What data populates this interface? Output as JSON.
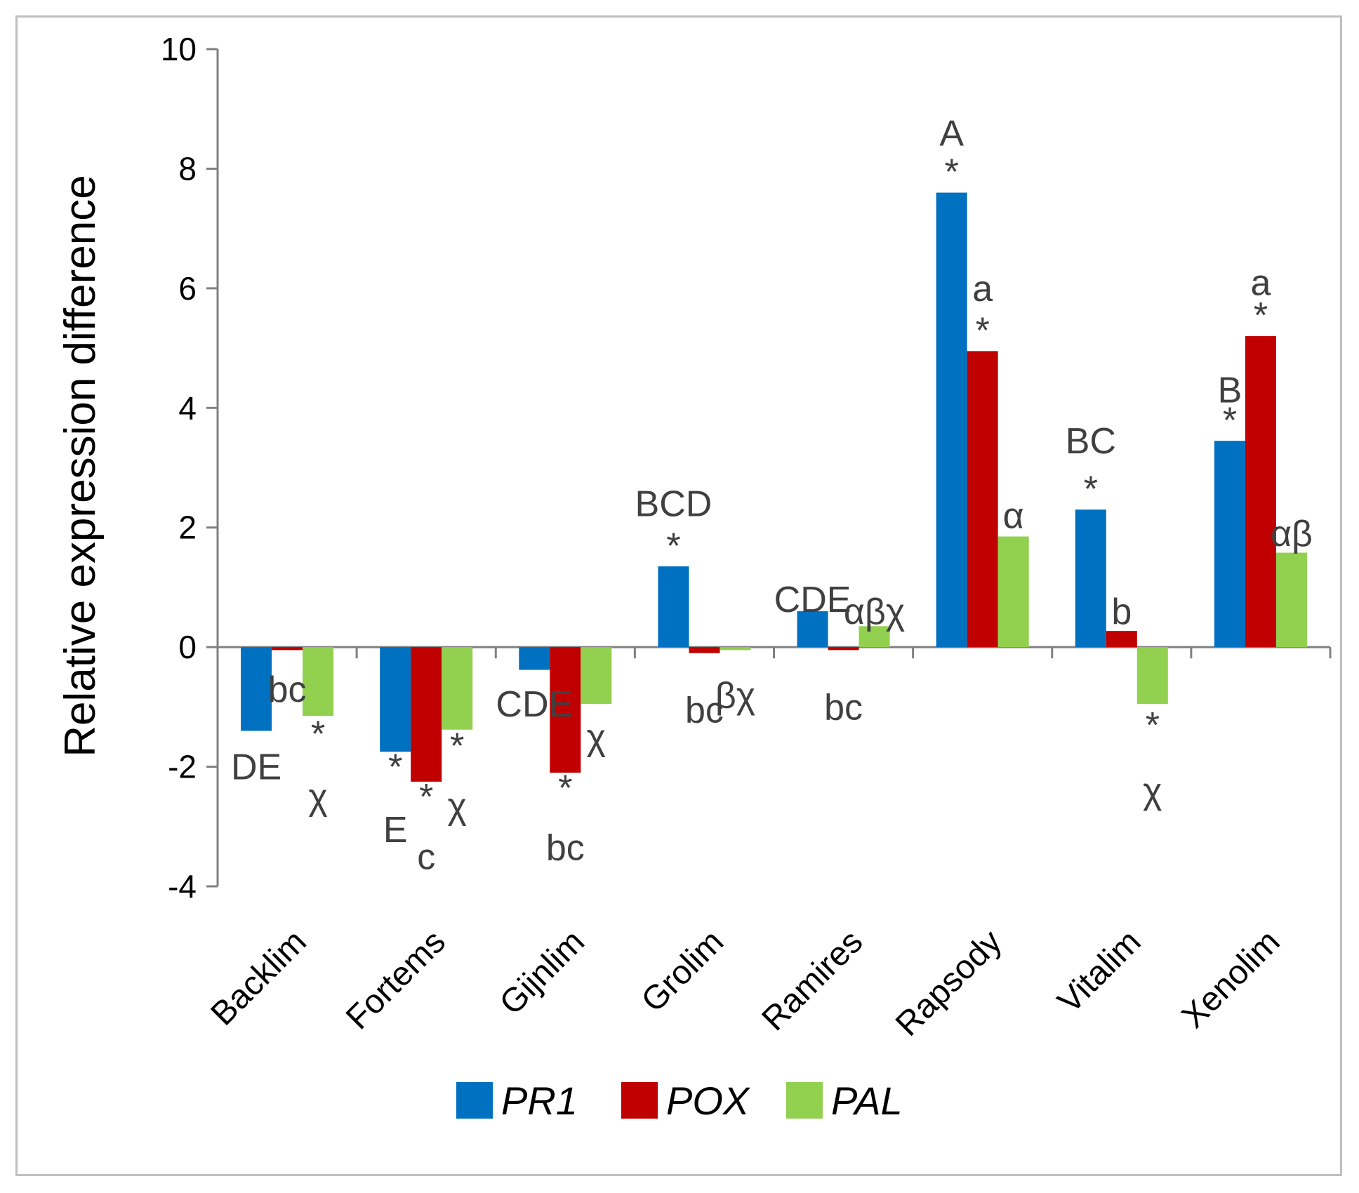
{
  "chart_data": {
    "type": "bar",
    "ylabel": "Relative expression difference",
    "xlabel": "",
    "ylim": [
      -4,
      10
    ],
    "yticks": [
      10,
      8,
      6,
      4,
      2,
      0,
      -2,
      -4
    ],
    "categories": [
      "Backlim",
      "Fortems",
      "Gijnlim",
      "Grolim",
      "Ramires",
      "Rapsody",
      "Vitalim",
      "Xenolim"
    ],
    "series": [
      {
        "name": "PR1",
        "color": "#0070c0",
        "values": [
          -1.4,
          -1.75,
          -0.38,
          1.35,
          0.6,
          7.6,
          2.3,
          3.45
        ]
      },
      {
        "name": "POX",
        "color": "#c00000",
        "values": [
          -0.05,
          -2.25,
          -2.1,
          -0.1,
          -0.05,
          4.95,
          0.27,
          5.2
        ]
      },
      {
        "name": "PAL",
        "color": "#92d050",
        "values": [
          -1.15,
          -1.38,
          -0.95,
          -0.05,
          0.35,
          1.85,
          -0.95,
          1.58
        ]
      }
    ],
    "grid": false,
    "legend_position": "bottom",
    "annotations": [
      {
        "text": "DE",
        "category": 0,
        "series": 0,
        "y": -2.0
      },
      {
        "text": "bc",
        "category": 0,
        "series": 1,
        "y": -0.7
      },
      {
        "text": "*",
        "category": 0,
        "series": 2,
        "y": -1.45
      },
      {
        "text": "χ",
        "category": 0,
        "series": 2,
        "y": -2.5
      },
      {
        "text": "*",
        "category": 1,
        "series": 0,
        "y": -2.0
      },
      {
        "text": "E",
        "category": 1,
        "series": 0,
        "y": -3.05
      },
      {
        "text": "*",
        "category": 1,
        "series": 1,
        "y": -2.5
      },
      {
        "text": "c",
        "category": 1,
        "series": 1,
        "y": -3.5
      },
      {
        "text": "*",
        "category": 1,
        "series": 2,
        "y": -1.65
      },
      {
        "text": "χ",
        "category": 1,
        "series": 2,
        "y": -2.65
      },
      {
        "text": "CDE",
        "category": 2,
        "series": 0,
        "y": -0.95
      },
      {
        "text": "*",
        "category": 2,
        "series": 1,
        "y": -2.35
      },
      {
        "text": "bc",
        "category": 2,
        "series": 1,
        "y": -3.35
      },
      {
        "text": "χ",
        "category": 2,
        "series": 2,
        "y": -1.5
      },
      {
        "text": "*",
        "category": 3,
        "series": 0,
        "y": 1.7
      },
      {
        "text": "BCD",
        "category": 3,
        "series": 0,
        "y": 2.4
      },
      {
        "text": "bc",
        "category": 3,
        "series": 1,
        "y": -1.05
      },
      {
        "text": "βχ",
        "category": 3,
        "series": 2,
        "y": -0.8
      },
      {
        "text": "CDE",
        "category": 4,
        "series": 0,
        "y": 0.8
      },
      {
        "text": "bc",
        "category": 4,
        "series": 1,
        "y": -1.0
      },
      {
        "text": "αβχ",
        "category": 4,
        "series": 2,
        "y": 0.6
      },
      {
        "text": "*",
        "category": 5,
        "series": 0,
        "y": 7.95
      },
      {
        "text": "A",
        "category": 5,
        "series": 0,
        "y": 8.6
      },
      {
        "text": "*",
        "category": 5,
        "series": 1,
        "y": 5.3
      },
      {
        "text": "a",
        "category": 5,
        "series": 1,
        "y": 6.0
      },
      {
        "text": "α",
        "category": 5,
        "series": 2,
        "y": 2.2
      },
      {
        "text": "*",
        "category": 6,
        "series": 0,
        "y": 2.65
      },
      {
        "text": "BC",
        "category": 6,
        "series": 0,
        "y": 3.45
      },
      {
        "text": "b",
        "category": 6,
        "series": 1,
        "y": 0.6
      },
      {
        "text": "*",
        "category": 6,
        "series": 2,
        "y": -1.3
      },
      {
        "text": "χ",
        "category": 6,
        "series": 2,
        "y": -2.4
      },
      {
        "text": "*",
        "category": 7,
        "series": 0,
        "y": 3.8
      },
      {
        "text": "B",
        "category": 7,
        "series": 0,
        "y": 4.3
      },
      {
        "text": "*",
        "category": 7,
        "series": 1,
        "y": 5.55
      },
      {
        "text": "a",
        "category": 7,
        "series": 1,
        "y": 6.1
      },
      {
        "text": "αβ",
        "category": 7,
        "series": 2,
        "y": 1.9
      }
    ]
  }
}
